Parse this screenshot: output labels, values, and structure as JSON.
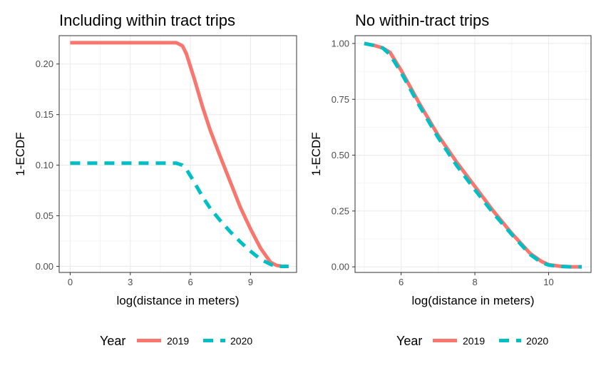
{
  "legend": {
    "title": "Year",
    "items": [
      {
        "label": "2019",
        "color": "#F8766D",
        "dash": "solid"
      },
      {
        "label": "2020",
        "color": "#00BFC4",
        "dash": "dashed"
      }
    ]
  },
  "chart_data": [
    {
      "type": "line",
      "title": "Including within tract trips",
      "xlabel": "log(distance in meters)",
      "ylabel": "1-ECDF",
      "xlim": [
        -0.55,
        11.3
      ],
      "ylim": [
        -0.006,
        0.228
      ],
      "xticks": [
        0,
        3,
        6,
        9
      ],
      "xtick_labels": [
        "0",
        "3",
        "6",
        "9"
      ],
      "yticks": [
        0,
        0.05,
        0.1,
        0.15,
        0.2
      ],
      "ytick_labels": [
        "0.00",
        "0.05",
        "0.10",
        "0.15",
        "0.20"
      ],
      "grid": true,
      "series": [
        {
          "name": "2019",
          "color": "#F8766D",
          "dash": "solid",
          "x": [
            0,
            5.3,
            5.6,
            5.8,
            6.2,
            6.6,
            7.0,
            7.5,
            8.0,
            8.5,
            9.0,
            9.5,
            10.0,
            10.3,
            10.6,
            10.9
          ],
          "y": [
            0.221,
            0.221,
            0.218,
            0.21,
            0.185,
            0.158,
            0.134,
            0.108,
            0.083,
            0.058,
            0.037,
            0.018,
            0.004,
            0.001,
            0.0,
            0.0
          ]
        },
        {
          "name": "2020",
          "color": "#00BFC4",
          "dash": "dashed",
          "x": [
            0,
            5.3,
            5.6,
            5.8,
            6.2,
            6.6,
            7.0,
            7.5,
            8.0,
            8.5,
            9.0,
            9.5,
            10.0,
            10.3,
            10.6,
            10.9
          ],
          "y": [
            0.102,
            0.102,
            0.1,
            0.096,
            0.083,
            0.069,
            0.057,
            0.045,
            0.034,
            0.024,
            0.015,
            0.007,
            0.002,
            0.0,
            0.0,
            0.0
          ]
        }
      ]
    },
    {
      "type": "line",
      "title": "No within-tract trips",
      "xlabel": "log(distance in meters)",
      "ylabel": "1-ECDF",
      "xlim": [
        4.75,
        11.15
      ],
      "ylim": [
        -0.025,
        1.035
      ],
      "xticks": [
        6,
        8,
        10
      ],
      "xtick_labels": [
        "6",
        "8",
        "10"
      ],
      "yticks": [
        0,
        0.25,
        0.5,
        0.75,
        1.0
      ],
      "ytick_labels": [
        "0.00",
        "0.25",
        "0.50",
        "0.75",
        "1.00"
      ],
      "grid": true,
      "series": [
        {
          "name": "2019",
          "color": "#F8766D",
          "dash": "solid",
          "x": [
            5.0,
            5.3,
            5.5,
            5.7,
            6.0,
            6.5,
            7.0,
            7.5,
            8.0,
            8.5,
            9.0,
            9.5,
            9.8,
            10.0,
            10.3,
            10.6,
            10.9
          ],
          "y": [
            1.0,
            0.99,
            0.98,
            0.96,
            0.88,
            0.73,
            0.59,
            0.47,
            0.36,
            0.25,
            0.15,
            0.06,
            0.025,
            0.01,
            0.003,
            0.0,
            0.0
          ]
        },
        {
          "name": "2020",
          "color": "#00BFC4",
          "dash": "dashed",
          "x": [
            5.0,
            5.3,
            5.5,
            5.7,
            6.0,
            6.5,
            7.0,
            7.5,
            8.0,
            8.5,
            9.0,
            9.5,
            9.8,
            10.0,
            10.3,
            10.6,
            10.9
          ],
          "y": [
            1.0,
            0.99,
            0.98,
            0.95,
            0.87,
            0.72,
            0.58,
            0.455,
            0.345,
            0.24,
            0.145,
            0.055,
            0.02,
            0.008,
            0.002,
            0.0,
            0.0
          ]
        }
      ]
    }
  ]
}
